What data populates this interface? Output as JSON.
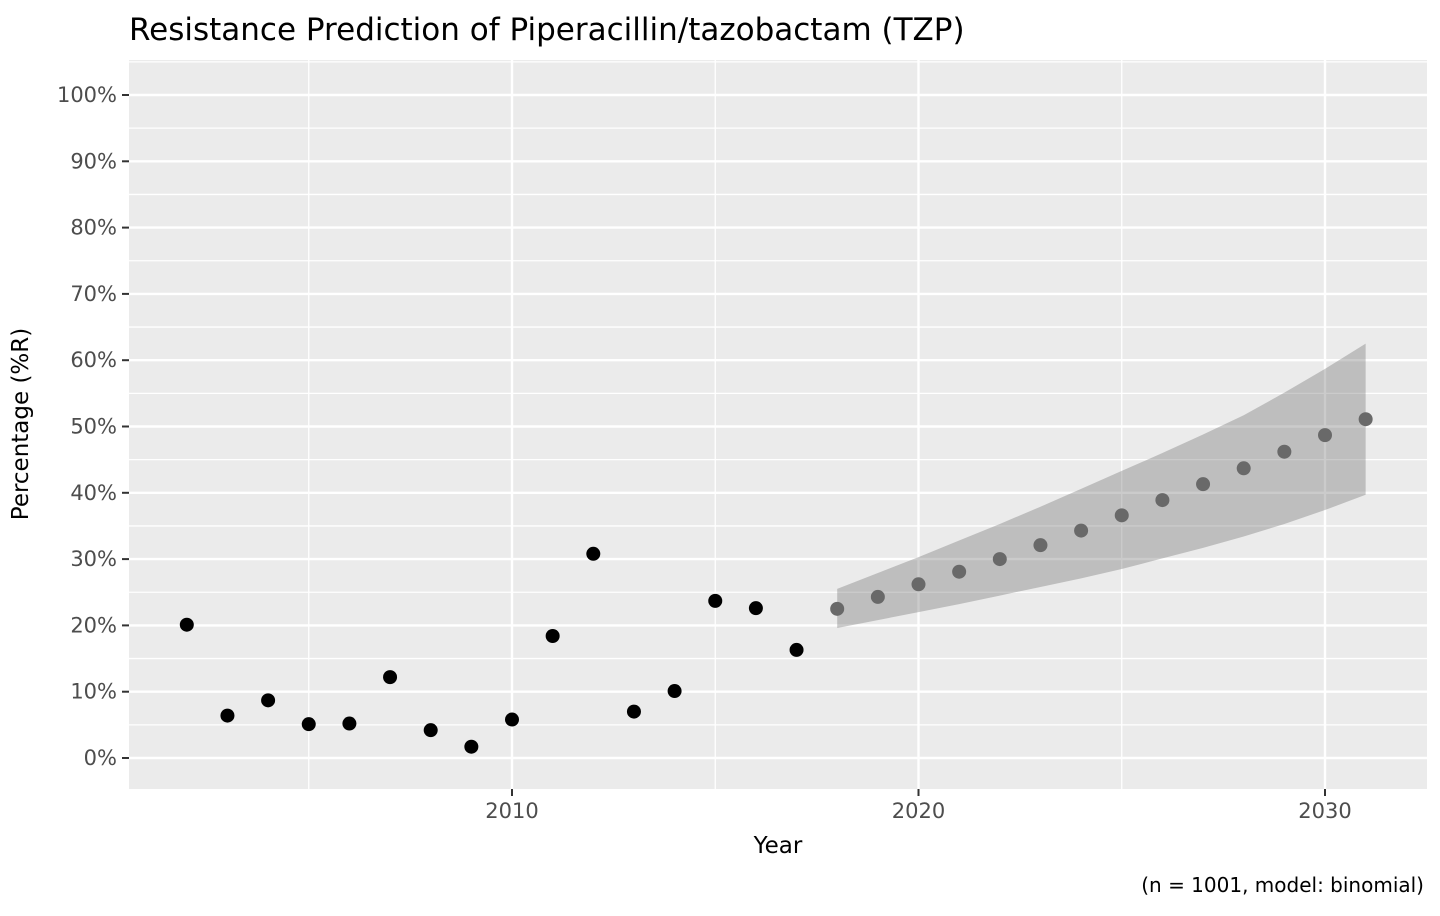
{
  "chart_data": {
    "type": "scatter",
    "title": "Resistance Prediction of Piperacillin/tazobactam (TZP)",
    "xlabel": "Year",
    "ylabel": "Percentage (%R)",
    "caption": "(n = 1001, model: binomial)",
    "xlim": [
      2000.5,
      2032.5
    ],
    "ylim": [
      -5,
      105
    ],
    "grid": true,
    "legend": "none",
    "x_axis": {
      "major_ticks": [
        2010,
        2020,
        2030
      ],
      "major_labels": [
        "2010",
        "2020",
        "2030"
      ],
      "minor_ticks": [
        2005,
        2015,
        2025
      ]
    },
    "y_axis": {
      "major_ticks": [
        0,
        10,
        20,
        30,
        40,
        50,
        60,
        70,
        80,
        90,
        100
      ],
      "major_labels": [
        "0%",
        "10%",
        "20%",
        "30%",
        "40%",
        "50%",
        "60%",
        "70%",
        "80%",
        "90%",
        "100%"
      ],
      "minor_ticks": [
        5,
        15,
        25,
        35,
        45,
        55,
        65,
        75,
        85,
        95,
        105
      ]
    },
    "series": [
      {
        "name": "observed",
        "type": "scatter",
        "color": "#000000",
        "points": [
          [
            2002,
            20.1
          ],
          [
            2003,
            6.4
          ],
          [
            2004,
            8.7
          ],
          [
            2005,
            5.1
          ],
          [
            2006,
            5.2
          ],
          [
            2007,
            12.2
          ],
          [
            2008,
            4.2
          ],
          [
            2009,
            1.7
          ],
          [
            2010,
            5.8
          ],
          [
            2011,
            18.4
          ],
          [
            2012,
            30.8
          ],
          [
            2013,
            7.0
          ],
          [
            2014,
            10.1
          ],
          [
            2015,
            23.7
          ],
          [
            2016,
            22.6
          ],
          [
            2017,
            16.3
          ]
        ]
      },
      {
        "name": "predicted",
        "type": "scatter",
        "color": "#696969",
        "points": [
          [
            2018,
            22.5
          ],
          [
            2019,
            24.3
          ],
          [
            2020,
            26.2
          ],
          [
            2021,
            28.1
          ],
          [
            2022,
            30.0
          ],
          [
            2023,
            32.1
          ],
          [
            2024,
            34.3
          ],
          [
            2025,
            36.6
          ],
          [
            2026,
            38.9
          ],
          [
            2027,
            41.3
          ],
          [
            2028,
            43.7
          ],
          [
            2029,
            46.2
          ],
          [
            2030,
            48.7
          ],
          [
            2031,
            51.1
          ]
        ]
      },
      {
        "name": "confidence-ribbon",
        "type": "area-band",
        "color": "#696969",
        "opacity": 0.35,
        "points": [
          {
            "x": 2018,
            "lower": 19.6,
            "upper": 25.5
          },
          {
            "x": 2019,
            "lower": 20.8,
            "upper": 27.9
          },
          {
            "x": 2020,
            "lower": 22.0,
            "upper": 30.3
          },
          {
            "x": 2021,
            "lower": 23.2,
            "upper": 32.8
          },
          {
            "x": 2022,
            "lower": 24.5,
            "upper": 35.3
          },
          {
            "x": 2023,
            "lower": 25.8,
            "upper": 37.9
          },
          {
            "x": 2024,
            "lower": 27.1,
            "upper": 40.6
          },
          {
            "x": 2025,
            "lower": 28.5,
            "upper": 43.3
          },
          {
            "x": 2026,
            "lower": 30.1,
            "upper": 46.0
          },
          {
            "x": 2027,
            "lower": 31.7,
            "upper": 48.8
          },
          {
            "x": 2028,
            "lower": 33.4,
            "upper": 51.7
          },
          {
            "x": 2029,
            "lower": 35.3,
            "upper": 55.1
          },
          {
            "x": 2030,
            "lower": 37.4,
            "upper": 58.7
          },
          {
            "x": 2031,
            "lower": 39.7,
            "upper": 62.5
          }
        ]
      }
    ],
    "colors": {
      "panel_background": "#EBEBEB",
      "gridline": "#FFFFFF",
      "tick_mark": "#333333",
      "tick_label": "#4D4D4D",
      "text": "#000000",
      "observed_point": "#000000",
      "predicted_point": "#696969"
    }
  }
}
